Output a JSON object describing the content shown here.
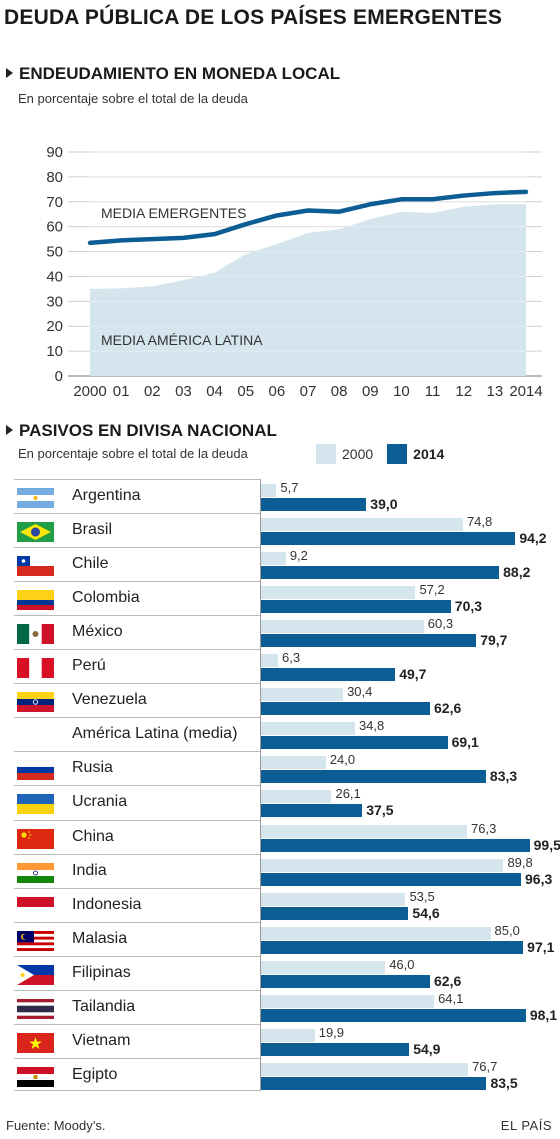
{
  "title": "DEUDA PÚBLICA DE LOS PAÍSES EMERGENTES",
  "section1": {
    "title": "ENDEUDAMIENTO EN MONEDA LOCAL",
    "subtitle": "En porcentaje sobre el total de la deuda"
  },
  "section2": {
    "title": "PASIVOS EN DIVISA NACIONAL",
    "subtitle": "En porcentaje sobre el total de la deuda",
    "legend": [
      {
        "label": "2000",
        "color": "#d4e5ee"
      },
      {
        "label": "2014",
        "color": "#0b5d93"
      }
    ]
  },
  "footer": {
    "source": "Fuente: Moody’s.",
    "brand": "EL PAÍS"
  },
  "chart_data": [
    {
      "type": "area",
      "x": [
        "2000",
        "01",
        "02",
        "03",
        "04",
        "05",
        "06",
        "07",
        "08",
        "09",
        "10",
        "11",
        "12",
        "13",
        "2014"
      ],
      "ylim": [
        0,
        90
      ],
      "yticks": [
        0,
        10,
        20,
        30,
        40,
        50,
        60,
        70,
        80,
        90
      ],
      "grid": true,
      "series": [
        {
          "name": "MEDIA AMÉRICA LATINA",
          "kind": "area",
          "color": "#d4e5ee",
          "values": [
            35,
            35.2,
            36,
            38.5,
            41.5,
            49,
            53,
            57.5,
            59,
            63,
            66,
            65.5,
            68,
            69,
            69
          ]
        },
        {
          "name": "MEDIA EMERGENTES",
          "kind": "line",
          "color": "#0b5d93",
          "values": [
            53.5,
            54.5,
            55,
            55.5,
            57,
            61,
            64.5,
            66.5,
            66,
            69,
            71,
            71,
            72.5,
            73.5,
            74
          ]
        }
      ]
    },
    {
      "type": "bar",
      "orientation": "horizontal",
      "xlim": [
        0,
        100
      ],
      "categories": [
        "Argentina",
        "Brasil",
        "Chile",
        "Colombia",
        "México",
        "Perú",
        "Venezuela",
        "América Latina (media)",
        "Rusia",
        "Ucrania",
        "China",
        "India",
        "Indonesia",
        "Malasia",
        "Filipinas",
        "Tailandia",
        "Vietnam",
        "Egipto"
      ],
      "series": [
        {
          "name": "2000",
          "color": "#d4e5ee",
          "values": [
            5.7,
            74.8,
            9.2,
            57.2,
            60.3,
            6.3,
            30.4,
            34.8,
            24.0,
            26.1,
            76.3,
            89.8,
            53.5,
            85.0,
            46.0,
            64.1,
            19.9,
            76.7
          ],
          "labels": [
            "5,7",
            "74,8",
            "9,2",
            "57,2",
            "60,3",
            "6,3",
            "30,4",
            "34,8",
            "24,0",
            "26,1",
            "76,3",
            "89,8",
            "53,5",
            "85,0",
            "46,0",
            "64,1",
            "19,9",
            "76,7"
          ]
        },
        {
          "name": "2014",
          "color": "#0b5d93",
          "values": [
            39.0,
            94.2,
            88.2,
            70.3,
            79.7,
            49.7,
            62.6,
            69.1,
            83.3,
            37.5,
            99.5,
            96.3,
            54.6,
            97.1,
            62.6,
            98.1,
            54.9,
            83.5
          ],
          "labels": [
            "39,0",
            "94,2",
            "88,2",
            "70,3",
            "79,7",
            "49,7",
            "62,6",
            "69,1",
            "83,3",
            "37,5",
            "99,5",
            "96,3",
            "54,6",
            "97,1",
            "62,6",
            "98,1",
            "54,9",
            "83,5"
          ]
        }
      ],
      "flags": [
        "argentina-flag-icon",
        "brazil-flag-icon",
        "chile-flag-icon",
        "colombia-flag-icon",
        "mexico-flag-icon",
        "peru-flag-icon",
        "venezuela-flag-icon",
        "",
        "russia-flag-icon",
        "ukraine-flag-icon",
        "china-flag-icon",
        "india-flag-icon",
        "indonesia-flag-icon",
        "malaysia-flag-icon",
        "philippines-flag-icon",
        "thailand-flag-icon",
        "vietnam-flag-icon",
        "egypt-flag-icon"
      ]
    }
  ]
}
